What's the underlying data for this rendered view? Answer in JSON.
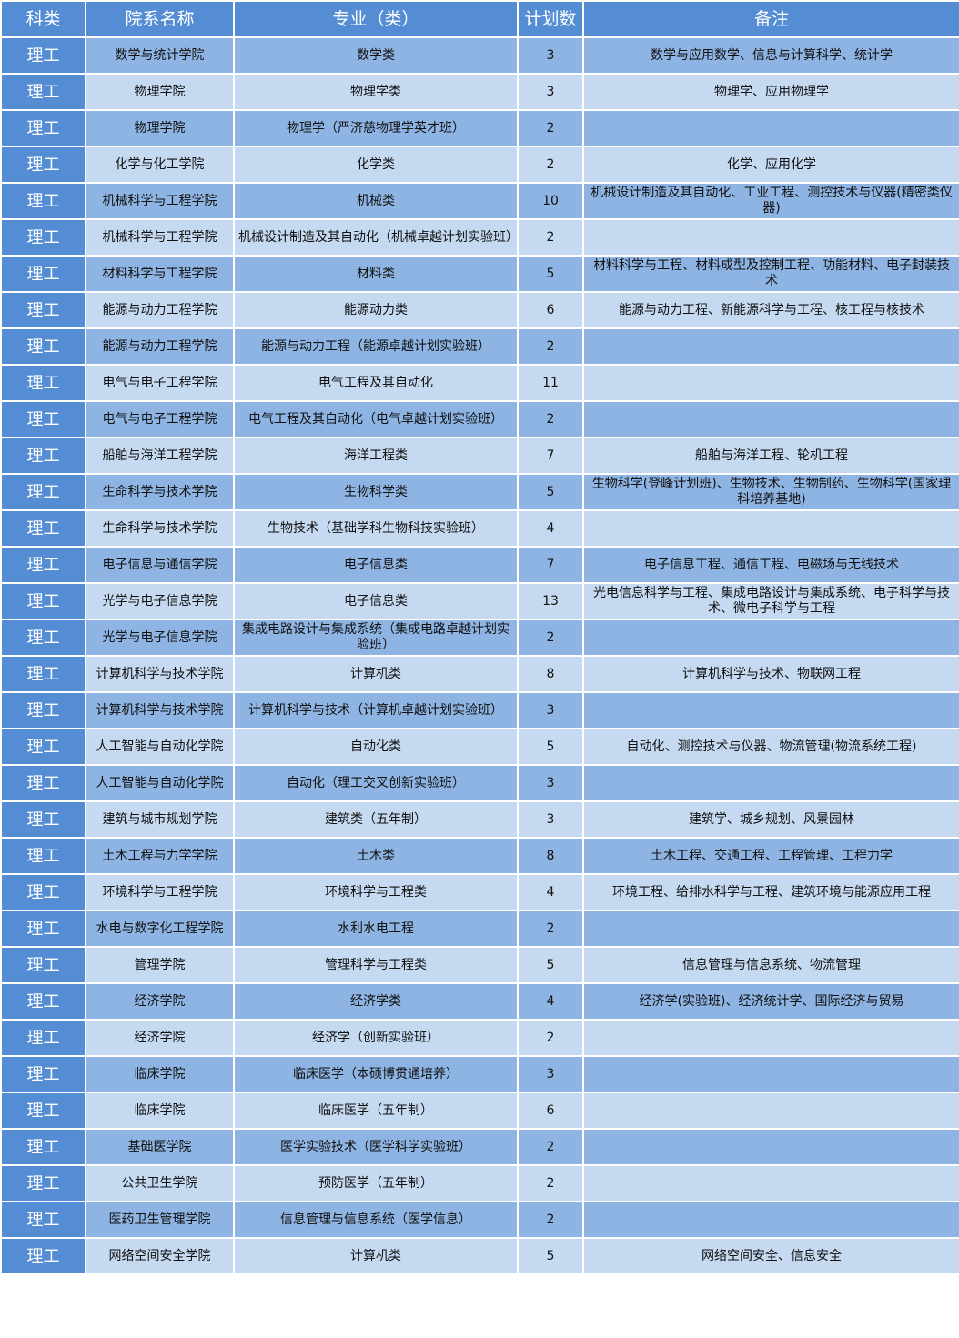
{
  "colors": {
    "header": "#548dd4",
    "row_dark": "#8eb4e3",
    "row_light": "#c5d9f1"
  },
  "headers": [
    "科类",
    "院系名称",
    "专业（类）",
    "计划数",
    "备注"
  ],
  "rows": [
    [
      "理工",
      "数学与统计学院",
      "数学类",
      "3",
      "数学与应用数学、信息与计算科学、统计学"
    ],
    [
      "理工",
      "物理学院",
      "物理学类",
      "3",
      "物理学、应用物理学"
    ],
    [
      "理工",
      "物理学院",
      "物理学（严济慈物理学英才班）",
      "2",
      ""
    ],
    [
      "理工",
      "化学与化工学院",
      "化学类",
      "2",
      "化学、应用化学"
    ],
    [
      "理工",
      "机械科学与工程学院",
      "机械类",
      "10",
      "机械设计制造及其自动化、工业工程、测控技术与仪器(精密类仪器)"
    ],
    [
      "理工",
      "机械科学与工程学院",
      "机械设计制造及其自动化（机械卓越计划实验班）",
      "2",
      ""
    ],
    [
      "理工",
      "材料科学与工程学院",
      "材料类",
      "5",
      "材料科学与工程、材料成型及控制工程、功能材料、电子封装技术"
    ],
    [
      "理工",
      "能源与动力工程学院",
      "能源动力类",
      "6",
      "能源与动力工程、新能源科学与工程、核工程与核技术"
    ],
    [
      "理工",
      "能源与动力工程学院",
      "能源与动力工程（能源卓越计划实验班）",
      "2",
      ""
    ],
    [
      "理工",
      "电气与电子工程学院",
      "电气工程及其自动化",
      "11",
      ""
    ],
    [
      "理工",
      "电气与电子工程学院",
      "电气工程及其自动化（电气卓越计划实验班）",
      "2",
      ""
    ],
    [
      "理工",
      "船舶与海洋工程学院",
      "海洋工程类",
      "7",
      "船舶与海洋工程、轮机工程"
    ],
    [
      "理工",
      "生命科学与技术学院",
      "生物科学类",
      "5",
      "生物科学(登峰计划班)、生物技术、生物制药、生物科学(国家理科培养基地)"
    ],
    [
      "理工",
      "生命科学与技术学院",
      "生物技术（基础学科生物科技实验班）",
      "4",
      ""
    ],
    [
      "理工",
      "电子信息与通信学院",
      "电子信息类",
      "7",
      "电子信息工程、通信工程、电磁场与无线技术"
    ],
    [
      "理工",
      "光学与电子信息学院",
      "电子信息类",
      "13",
      "光电信息科学与工程、集成电路设计与集成系统、电子科学与技术、微电子科学与工程"
    ],
    [
      "理工",
      "光学与电子信息学院",
      "集成电路设计与集成系统（集成电路卓越计划实验班）",
      "2",
      ""
    ],
    [
      "理工",
      "计算机科学与技术学院",
      "计算机类",
      "8",
      "计算机科学与技术、物联网工程"
    ],
    [
      "理工",
      "计算机科学与技术学院",
      "计算机科学与技术（计算机卓越计划实验班）",
      "3",
      ""
    ],
    [
      "理工",
      "人工智能与自动化学院",
      "自动化类",
      "5",
      "自动化、测控技术与仪器、物流管理(物流系统工程)"
    ],
    [
      "理工",
      "人工智能与自动化学院",
      "自动化（理工交叉创新实验班）",
      "3",
      ""
    ],
    [
      "理工",
      "建筑与城市规划学院",
      "建筑类（五年制）",
      "3",
      "建筑学、城乡规划、风景园林"
    ],
    [
      "理工",
      "土木工程与力学学院",
      "土木类",
      "8",
      "土木工程、交通工程、工程管理、工程力学"
    ],
    [
      "理工",
      "环境科学与工程学院",
      "环境科学与工程类",
      "4",
      "环境工程、给排水科学与工程、建筑环境与能源应用工程"
    ],
    [
      "理工",
      "水电与数字化工程学院",
      "水利水电工程",
      "2",
      ""
    ],
    [
      "理工",
      "管理学院",
      "管理科学与工程类",
      "5",
      "信息管理与信息系统、物流管理"
    ],
    [
      "理工",
      "经济学院",
      "经济学类",
      "4",
      "经济学(实验班)、经济统计学、国际经济与贸易"
    ],
    [
      "理工",
      "经济学院",
      "经济学（创新实验班）",
      "2",
      ""
    ],
    [
      "理工",
      "临床学院",
      "临床医学（本硕博贯通培养）",
      "3",
      ""
    ],
    [
      "理工",
      "临床学院",
      "临床医学（五年制）",
      "6",
      ""
    ],
    [
      "理工",
      "基础医学院",
      "医学实验技术（医学科学实验班）",
      "2",
      ""
    ],
    [
      "理工",
      "公共卫生学院",
      "预防医学（五年制）",
      "2",
      ""
    ],
    [
      "理工",
      "医药卫生管理学院",
      "信息管理与信息系统（医学信息）",
      "2",
      ""
    ],
    [
      "理工",
      "网络空间安全学院",
      "计算机类",
      "5",
      "网络空间安全、信息安全"
    ]
  ]
}
